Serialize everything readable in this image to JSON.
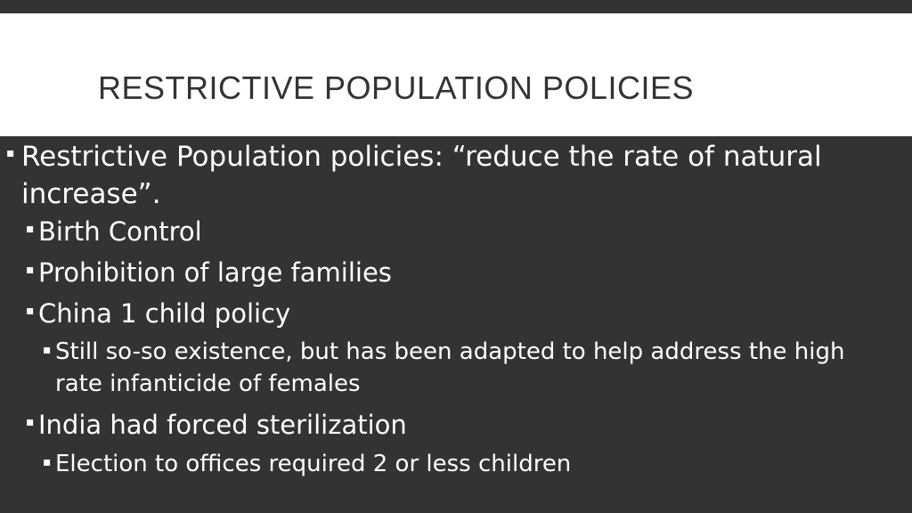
{
  "slide": {
    "title": "RESTRICTIVE POPULATION POLICIES",
    "bullets": [
      {
        "level": 1,
        "text": "Restrictive Population policies: “reduce the rate of natural increase”."
      },
      {
        "level": 2,
        "text": "Birth Control"
      },
      {
        "level": 2,
        "text": "Prohibition of large families"
      },
      {
        "level": 2,
        "text": "China 1 child policy"
      },
      {
        "level": 3,
        "text": "Still so-so existence, but has been adapted to help address the high rate infanticide of females"
      },
      {
        "level": 2,
        "text": "India had forced sterilization"
      },
      {
        "level": 3,
        "text": "Election to offices required 2 or less children"
      }
    ],
    "bullet_symbol": "▪"
  },
  "colors": {
    "background": "#333333",
    "title_band": "#ffffff",
    "title_text": "#333333",
    "body_text": "#ffffff"
  }
}
